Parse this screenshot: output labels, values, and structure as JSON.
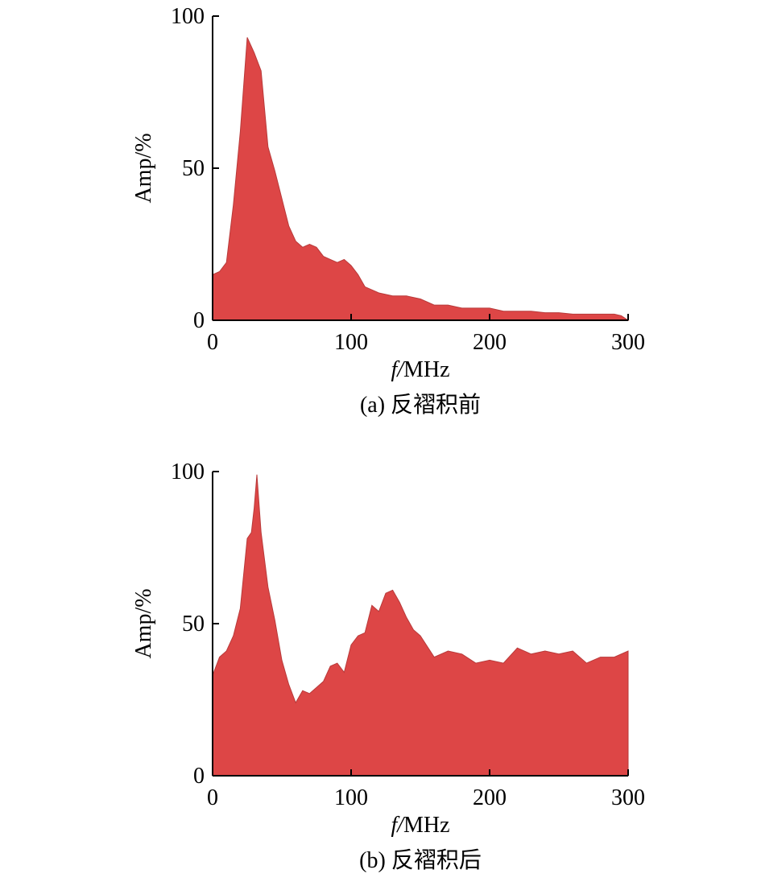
{
  "fill_color": "#dd4646",
  "edge_color": "#b83a3a",
  "chart_data": [
    {
      "type": "area",
      "caption": "(a) 反褶积前",
      "xlabel": "MHz",
      "xlabel_italic_prefix": "f/",
      "ylabel": "Amp/%",
      "xlim": [
        0,
        300
      ],
      "ylim": [
        0,
        100
      ],
      "xticks": [
        0,
        100,
        200,
        300
      ],
      "yticks": [
        0,
        50,
        100
      ],
      "grid": false,
      "x": [
        0,
        5,
        10,
        15,
        20,
        25,
        27,
        30,
        35,
        40,
        45,
        50,
        55,
        60,
        65,
        70,
        75,
        80,
        85,
        90,
        95,
        100,
        105,
        110,
        115,
        120,
        130,
        140,
        150,
        160,
        170,
        180,
        190,
        200,
        210,
        220,
        230,
        240,
        250,
        260,
        270,
        280,
        290,
        295,
        300
      ],
      "y": [
        15,
        16,
        19,
        38,
        62,
        93,
        91,
        88,
        82,
        57,
        49,
        40,
        31,
        26,
        24,
        25,
        24,
        21,
        20,
        19,
        20,
        18,
        15,
        11,
        10,
        9,
        8,
        8,
        7,
        5,
        5,
        4,
        4,
        4,
        3,
        3,
        3,
        2.5,
        2.5,
        2,
        2,
        2,
        2,
        1.5,
        0
      ]
    },
    {
      "type": "area",
      "caption": "(b) 反褶积后",
      "xlabel": "MHz",
      "xlabel_italic_prefix": "f/",
      "ylabel": "Amp/%",
      "xlim": [
        0,
        300
      ],
      "ylim": [
        0,
        100
      ],
      "xticks": [
        0,
        100,
        200,
        300
      ],
      "yticks": [
        0,
        50,
        100
      ],
      "grid": false,
      "x": [
        0,
        5,
        10,
        15,
        20,
        25,
        28,
        30,
        32,
        35,
        40,
        45,
        50,
        55,
        60,
        65,
        70,
        75,
        80,
        85,
        90,
        95,
        100,
        105,
        110,
        115,
        120,
        125,
        130,
        135,
        140,
        145,
        150,
        160,
        170,
        180,
        190,
        200,
        210,
        220,
        230,
        240,
        250,
        260,
        270,
        280,
        290,
        300
      ],
      "y": [
        33,
        39,
        41,
        46,
        55,
        78,
        80,
        88,
        99,
        80,
        62,
        51,
        38,
        30,
        24,
        28,
        27,
        29,
        31,
        36,
        37,
        34,
        43,
        46,
        47,
        56,
        54,
        60,
        61,
        57,
        52,
        48,
        46,
        39,
        41,
        40,
        37,
        38,
        37,
        42,
        40,
        41,
        40,
        41,
        37,
        39,
        39,
        41
      ]
    }
  ]
}
